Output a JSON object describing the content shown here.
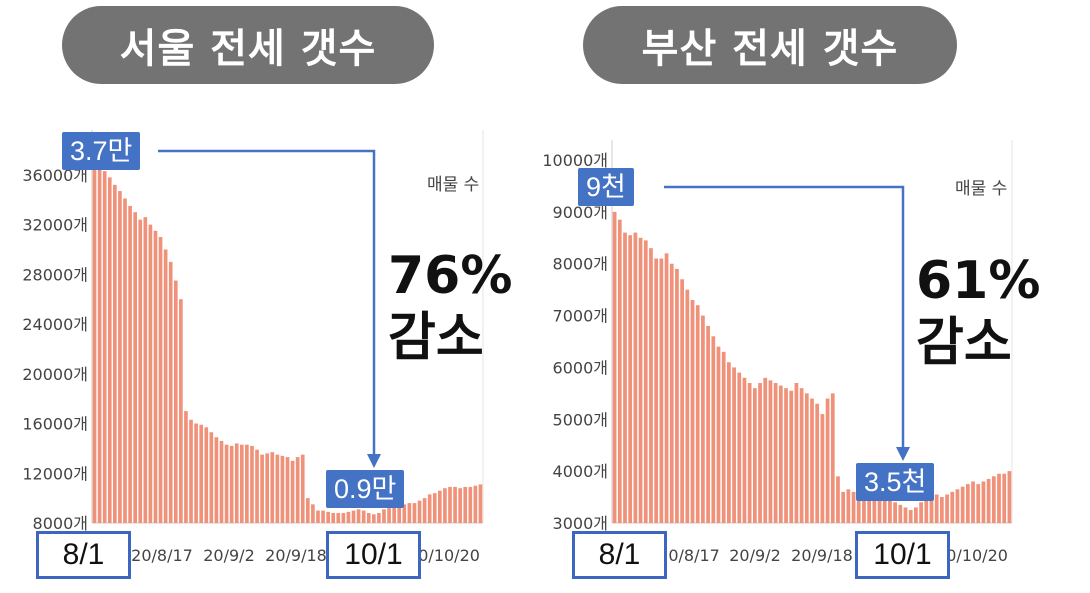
{
  "panels": [
    {
      "title": "서울 전세 갯수",
      "legend": "매물 수",
      "headline": "76%\n감소",
      "start_callout": "3.7만",
      "end_callout": "0.9만",
      "start_date": "8/1",
      "end_date": "10/1",
      "colors": {
        "bar": "#f0917a",
        "callout": "#4472c4",
        "arrow": "#4472c4",
        "box": "#3c66c0"
      }
    },
    {
      "title": "부산 전세 갯수",
      "legend": "매물 수",
      "headline": "61%\n감소",
      "start_callout": "9천",
      "end_callout": "3.5천",
      "start_date": "8/1",
      "end_date": "10/1",
      "colors": {
        "bar": "#f0917a",
        "callout": "#4472c4",
        "arrow": "#4472c4",
        "box": "#3c66c0"
      }
    }
  ],
  "chart_data": [
    {
      "type": "bar",
      "title": "서울 전세 갯수",
      "series": [
        {
          "name": "매물 수",
          "values": [
            37000,
            36700,
            36300,
            35800,
            35200,
            34700,
            34100,
            33500,
            33000,
            32400,
            32600,
            32000,
            31500,
            31000,
            30000,
            29000,
            27500,
            26000,
            17000,
            16300,
            16000,
            15900,
            15700,
            15300,
            14900,
            14600,
            14300,
            14200,
            14400,
            14300,
            14300,
            14200,
            13900,
            13500,
            13600,
            13700,
            13500,
            13400,
            13300,
            13000,
            13300,
            13500,
            10000,
            9500,
            9000,
            9000,
            8900,
            8800,
            8800,
            8800,
            8900,
            9000,
            9100,
            9000,
            8800,
            8700,
            8800,
            9100,
            9200,
            9300,
            9500,
            9500,
            9600,
            9600,
            9800,
            10000,
            10300,
            10400,
            10600,
            10800,
            10900,
            10900,
            10800,
            10900,
            10900,
            11000,
            11100
          ]
        }
      ],
      "x_ticks": [
        "20/8/17",
        "20/9/2",
        "20/9/18",
        "20/10/20"
      ],
      "y_ticks": [
        "8000개",
        "12000개",
        "16000개",
        "20000개",
        "24000개",
        "28000개",
        "32000개",
        "36000개"
      ],
      "ylim": [
        8000,
        38000
      ],
      "grid": false,
      "legend_position": "top-right"
    },
    {
      "type": "bar",
      "title": "부산 전세 갯수",
      "series": [
        {
          "name": "매물 수",
          "values": [
            9000,
            8850,
            8600,
            8550,
            8600,
            8500,
            8450,
            8300,
            8100,
            8100,
            8200,
            8000,
            7900,
            7700,
            7500,
            7300,
            7200,
            7000,
            6800,
            6600,
            6400,
            6300,
            6100,
            6000,
            5900,
            5800,
            5700,
            5600,
            5700,
            5800,
            5750,
            5700,
            5650,
            5600,
            5550,
            5700,
            5600,
            5500,
            5400,
            5300,
            5100,
            5400,
            5500,
            3900,
            3600,
            3650,
            3600,
            3700,
            3650,
            3600,
            3550,
            3500,
            3500,
            3450,
            3400,
            3350,
            3300,
            3250,
            3300,
            3400,
            3450,
            3500,
            3550,
            3500,
            3550,
            3600,
            3650,
            3700,
            3750,
            3800,
            3750,
            3800,
            3850,
            3900,
            3950,
            3950,
            4000
          ]
        }
      ],
      "x_ticks": [
        "20/8/17",
        "20/9/2",
        "20/9/18",
        "20/10/20"
      ],
      "y_ticks": [
        "3000개",
        "4000개",
        "5000개",
        "6000개",
        "7000개",
        "8000개",
        "9000개",
        "10000개"
      ],
      "ylim": [
        3000,
        10000
      ],
      "grid": false,
      "legend_position": "top-right"
    }
  ]
}
